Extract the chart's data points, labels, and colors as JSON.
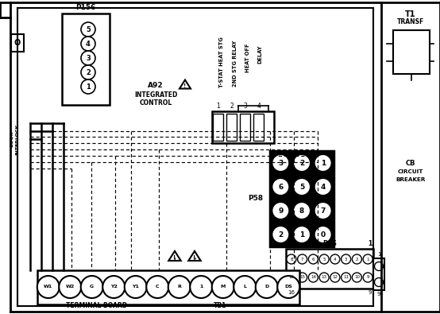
{
  "bg_color": "#ffffff",
  "line_color": "#000000",
  "figsize": [
    5.54,
    3.95
  ],
  "dpi": 100,
  "p156_circles": [
    [
      "5",
      111,
      37
    ],
    [
      "4",
      111,
      55
    ],
    [
      "3",
      111,
      73
    ],
    [
      "2",
      111,
      91
    ],
    [
      "1",
      111,
      109
    ]
  ],
  "tb_labels": [
    "W1",
    "W2",
    "G",
    "Y2",
    "Y1",
    "C",
    "R",
    "1",
    "M",
    "L",
    "D",
    "DS"
  ],
  "p58_labels": [
    [
      "3",
      "2",
      "1"
    ],
    [
      "6",
      "5",
      "4"
    ],
    [
      "9",
      "8",
      "7"
    ],
    [
      "2",
      "1",
      "0"
    ]
  ]
}
